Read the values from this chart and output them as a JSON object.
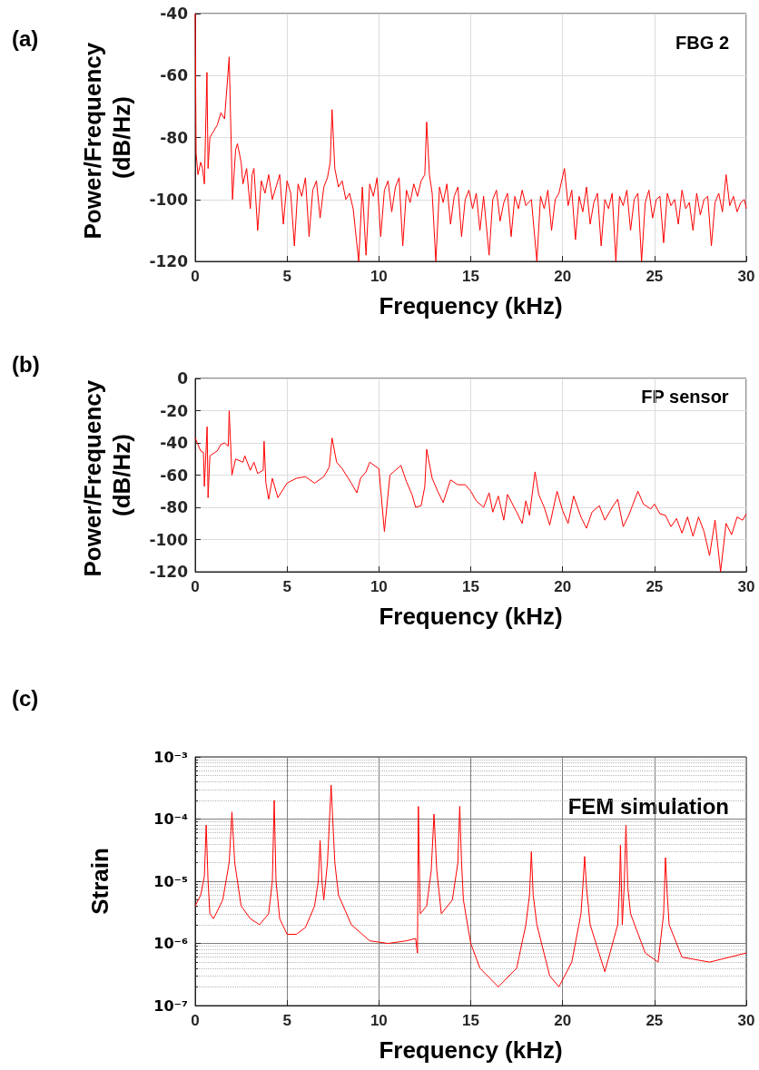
{
  "chart_data": [
    {
      "type": "line",
      "title": "(a)",
      "xlabel": "Frequency (kHz)",
      "ylabel": "Power/Frequency (dB/Hz)",
      "annotations": [
        "FBG 2"
      ],
      "color": "#ff0000",
      "grid": true,
      "xlim": [
        0,
        30
      ],
      "xticks": [
        0,
        5,
        10,
        15,
        20,
        25,
        30
      ],
      "ylim": [
        -120,
        -40
      ],
      "yticks": [
        -120,
        -100,
        -80,
        -60,
        -40
      ],
      "x": [
        0,
        0.05,
        0.15,
        0.3,
        0.4,
        0.5,
        0.64,
        0.7,
        0.8,
        1.0,
        1.2,
        1.4,
        1.6,
        1.85,
        2.03,
        2.2,
        2.3,
        2.5,
        2.6,
        2.8,
        3.0,
        3.1,
        3.2,
        3.4,
        3.6,
        3.8,
        4.0,
        4.2,
        4.4,
        4.6,
        4.8,
        5.0,
        5.2,
        5.4,
        5.6,
        5.8,
        6.0,
        6.2,
        6.4,
        6.6,
        6.8,
        7.0,
        7.2,
        7.35,
        7.45,
        7.6,
        7.8,
        8.0,
        8.2,
        8.4,
        8.6,
        8.9,
        9.1,
        9.3,
        9.5,
        9.7,
        9.9,
        10.1,
        10.3,
        10.5,
        10.7,
        10.9,
        11.1,
        11.3,
        11.5,
        11.7,
        11.9,
        12.1,
        12.3,
        12.5,
        12.6,
        12.75,
        12.9,
        13.1,
        13.3,
        13.5,
        13.7,
        13.9,
        14.1,
        14.3,
        14.5,
        14.7,
        14.9,
        15.1,
        15.3,
        15.5,
        15.7,
        16.0,
        16.2,
        16.4,
        16.6,
        16.8,
        17.0,
        17.2,
        17.4,
        17.6,
        17.8,
        18.0,
        18.3,
        18.6,
        18.8,
        19.0,
        19.2,
        19.4,
        19.6,
        19.8,
        20.1,
        20.3,
        20.5,
        20.7,
        20.9,
        21.1,
        21.3,
        21.5,
        21.7,
        21.9,
        22.1,
        22.3,
        22.5,
        22.7,
        22.9,
        23.1,
        23.3,
        23.5,
        23.7,
        23.9,
        24.1,
        24.3,
        24.5,
        24.7,
        24.9,
        25.1,
        25.3,
        25.5,
        25.7,
        25.9,
        26.1,
        26.3,
        26.5,
        26.7,
        26.9,
        27.1,
        27.3,
        27.5,
        27.7,
        27.9,
        28.1,
        28.3,
        28.5,
        28.7,
        28.9,
        29.1,
        29.3,
        29.5,
        29.7,
        29.9,
        30
      ],
      "values": [
        -40,
        -85,
        -92,
        -88,
        -90,
        -95,
        -59,
        -90,
        -80,
        -78,
        -76,
        -72,
        -74,
        -54,
        -100,
        -84,
        -82,
        -88,
        -95,
        -90,
        -103,
        -92,
        -90,
        -110,
        -94,
        -98,
        -92,
        -100,
        -96,
        -92,
        -108,
        -94,
        -98,
        -115,
        -95,
        -99,
        -93,
        -112,
        -97,
        -94,
        -106,
        -96,
        -93,
        -88,
        -71,
        -90,
        -96,
        -94,
        -100,
        -98,
        -103,
        -120,
        -96,
        -118,
        -95,
        -99,
        -93,
        -112,
        -97,
        -94,
        -104,
        -96,
        -93,
        -115,
        -97,
        -101,
        -95,
        -99,
        -94,
        -92,
        -75,
        -92,
        -98,
        -120,
        -96,
        -101,
        -95,
        -108,
        -99,
        -96,
        -112,
        -100,
        -97,
        -103,
        -98,
        -110,
        -99,
        -118,
        -100,
        -97,
        -107,
        -101,
        -98,
        -112,
        -99,
        -103,
        -97,
        -102,
        -100,
        -120,
        -99,
        -103,
        -97,
        -110,
        -100,
        -98,
        -90,
        -102,
        -97,
        -113,
        -99,
        -104,
        -96,
        -108,
        -101,
        -98,
        -115,
        -100,
        -103,
        -98,
        -120,
        -99,
        -102,
        -97,
        -110,
        -100,
        -98,
        -120,
        -101,
        -97,
        -106,
        -100,
        -99,
        -114,
        -98,
        -102,
        -100,
        -108,
        -97,
        -103,
        -101,
        -110,
        -98,
        -105,
        -100,
        -99,
        -115,
        -101,
        -98,
        -104,
        -92,
        -102,
        -99,
        -104,
        -101,
        -100,
        -103
      ]
    },
    {
      "type": "line",
      "title": "(b)",
      "xlabel": "Frequency (kHz)",
      "ylabel": "Power/Frequency (dB/Hz)",
      "annotations": [
        "FP sensor"
      ],
      "color": "#ff0000",
      "grid": true,
      "xlim": [
        0,
        30
      ],
      "xticks": [
        0,
        5,
        10,
        15,
        20,
        25,
        30
      ],
      "ylim": [
        -120,
        0
      ],
      "yticks": [
        -120,
        -100,
        -80,
        -60,
        -40,
        -20,
        0
      ],
      "x": [
        0,
        0.3,
        0.45,
        0.5,
        0.65,
        0.7,
        0.8,
        1.2,
        1.4,
        1.6,
        1.8,
        1.85,
        2.0,
        2.2,
        2.6,
        2.7,
        3.0,
        3.2,
        3.4,
        3.7,
        3.75,
        3.85,
        4.0,
        4.2,
        4.5,
        5.0,
        5.5,
        6.0,
        6.5,
        7.0,
        7.3,
        7.45,
        7.7,
        8.0,
        8.5,
        8.8,
        9.0,
        9.3,
        9.5,
        10.0,
        10.3,
        10.6,
        10.8,
        11.2,
        11.5,
        11.8,
        12.0,
        12.3,
        12.5,
        12.6,
        12.9,
        13.2,
        13.5,
        13.9,
        14.3,
        14.7,
        15.0,
        15.3,
        15.7,
        16.0,
        16.2,
        16.5,
        16.8,
        17.0,
        17.5,
        17.8,
        18.0,
        18.2,
        18.5,
        18.7,
        19.0,
        19.3,
        19.7,
        20.0,
        20.3,
        20.6,
        21.0,
        21.3,
        21.6,
        22.0,
        22.3,
        22.7,
        23.0,
        23.3,
        23.6,
        23.8,
        24.1,
        24.4,
        24.8,
        25.0,
        25.3,
        25.6,
        25.9,
        26.2,
        26.5,
        26.8,
        27.1,
        27.4,
        27.7,
        28.0,
        28.3,
        28.6,
        28.9,
        29.2,
        29.5,
        29.8,
        30
      ],
      "values": [
        -37,
        -45,
        -46,
        -67,
        -30,
        -74,
        -48,
        -45,
        -41,
        -40,
        -42,
        -20,
        -60,
        -50,
        -52,
        -48,
        -57,
        -52,
        -59,
        -57,
        -39,
        -65,
        -75,
        -62,
        -74,
        -65,
        -62,
        -61,
        -65,
        -61,
        -55,
        -37,
        -52,
        -56,
        -65,
        -71,
        -62,
        -58,
        -52,
        -56,
        -95,
        -60,
        -58,
        -54,
        -64,
        -72,
        -80,
        -79,
        -67,
        -44,
        -62,
        -70,
        -77,
        -63,
        -66,
        -66,
        -70,
        -76,
        -80,
        -71,
        -83,
        -73,
        -88,
        -72,
        -83,
        -90,
        -76,
        -85,
        -58,
        -72,
        -80,
        -91,
        -70,
        -82,
        -90,
        -73,
        -86,
        -93,
        -83,
        -79,
        -88,
        -80,
        -75,
        -92,
        -85,
        -79,
        -70,
        -78,
        -81,
        -78,
        -84,
        -85,
        -92,
        -87,
        -96,
        -86,
        -98,
        -86,
        -95,
        -110,
        -88,
        -120,
        -90,
        -97,
        -86,
        -88,
        -84
      ]
    },
    {
      "type": "line",
      "title": "(c)",
      "xlabel": "Frequency (kHz)",
      "ylabel": "Strain",
      "annotations": [
        "FEM simulation"
      ],
      "color": "#ff0000",
      "grid": true,
      "log": "y",
      "xlim": [
        0,
        30
      ],
      "xticks": [
        0,
        5,
        10,
        15,
        20,
        25,
        30
      ],
      "ylim": [
        1e-07,
        0.001
      ],
      "yticks": [
        {
          "value": 1e-07,
          "label": "10⁻⁷"
        },
        {
          "value": 1e-06,
          "label": "10⁻⁶"
        },
        {
          "value": 1e-05,
          "label": "10⁻⁵"
        },
        {
          "value": 0.0001,
          "label": "10⁻⁴"
        },
        {
          "value": 0.001,
          "label": "10⁻³"
        }
      ],
      "x": [
        0,
        0.3,
        0.5,
        0.6,
        0.7,
        0.8,
        1.0,
        1.5,
        1.85,
        2.0,
        2.15,
        2.5,
        3.0,
        3.5,
        4.0,
        4.2,
        4.3,
        4.4,
        4.6,
        5.0,
        5.5,
        6.0,
        6.5,
        6.7,
        6.8,
        6.9,
        7.0,
        7.2,
        7.4,
        7.6,
        7.8,
        8.5,
        9.5,
        10.5,
        11.5,
        12.0,
        12.1,
        12.15,
        12.25,
        12.6,
        12.85,
        13.0,
        13.15,
        13.4,
        14.0,
        14.3,
        14.4,
        14.5,
        14.6,
        15.0,
        15.5,
        16.5,
        17.5,
        18.0,
        18.2,
        18.3,
        18.4,
        18.6,
        19.3,
        19.8,
        20.5,
        21.0,
        21.1,
        21.2,
        21.3,
        21.5,
        22.3,
        23.0,
        23.1,
        23.15,
        23.25,
        23.35,
        23.45,
        23.55,
        23.7,
        24.5,
        25.2,
        25.5,
        25.6,
        25.7,
        25.8,
        26.5,
        28.0,
        30
      ],
      "values": [
        4e-06,
        6e-06,
        1.2e-05,
        8e-05,
        1e-05,
        3e-06,
        2.5e-06,
        5e-06,
        2e-05,
        0.00013,
        2e-05,
        4e-06,
        2.5e-06,
        2e-06,
        3e-06,
        1e-05,
        0.0002,
        1e-05,
        2.5e-06,
        1.4e-06,
        1.4e-06,
        1.8e-06,
        4e-06,
        1e-05,
        4.5e-05,
        1e-05,
        5e-06,
        2e-05,
        0.00035,
        2e-05,
        6e-06,
        2e-06,
        1.1e-06,
        1e-06,
        1.1e-06,
        1.2e-06,
        7e-07,
        0.00016,
        3e-06,
        4e-06,
        1.5e-05,
        0.00012,
        1.5e-05,
        3e-06,
        5e-06,
        2e-05,
        0.00016,
        2e-05,
        5e-06,
        1e-06,
        4e-07,
        2e-07,
        4e-07,
        2e-06,
        6e-06,
        3e-05,
        6e-06,
        2e-06,
        3e-07,
        2e-07,
        5e-07,
        3e-06,
        8e-06,
        2.5e-05,
        8e-06,
        2e-06,
        3.5e-07,
        2e-06,
        8e-06,
        3.8e-05,
        2e-06,
        8e-06,
        8e-05,
        8e-06,
        3e-06,
        7e-07,
        5e-07,
        3e-06,
        2.4e-05,
        6e-06,
        2e-06,
        6e-07,
        5e-07,
        7e-07
      ]
    }
  ]
}
